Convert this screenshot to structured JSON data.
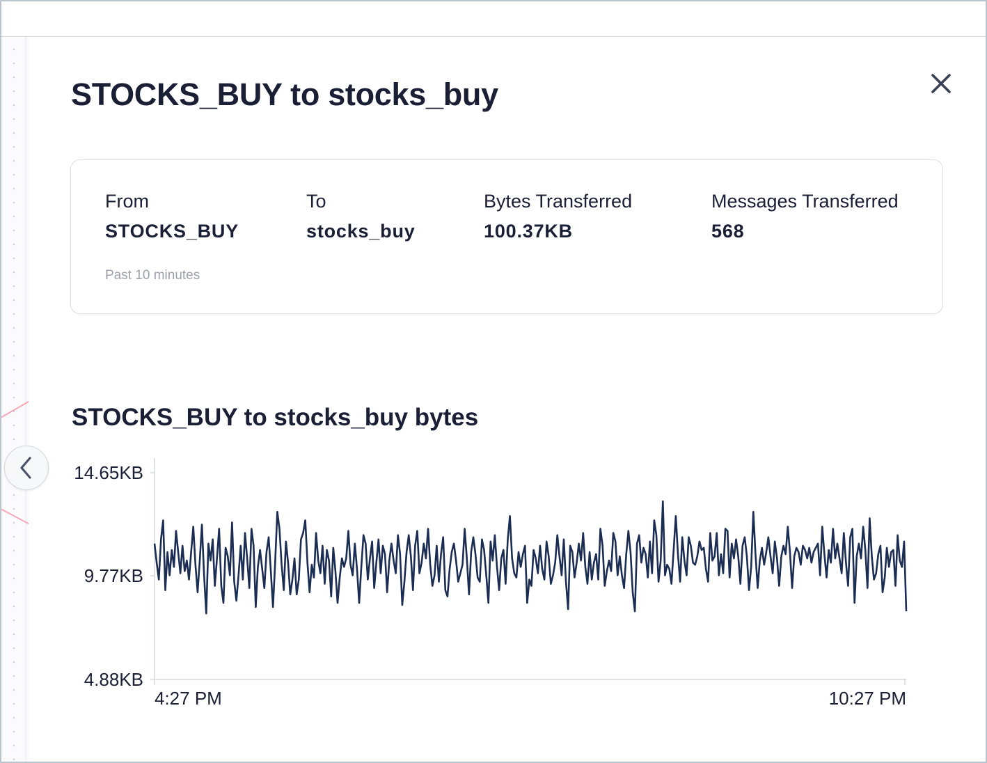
{
  "panel": {
    "title": "STOCKS_BUY to stocks_buy",
    "close_icon": "close-icon"
  },
  "summary": {
    "stats": [
      {
        "label": "From",
        "value": "STOCKS_BUY"
      },
      {
        "label": "To",
        "value": "stocks_buy"
      },
      {
        "label": "Bytes Transferred",
        "value": "100.37KB"
      },
      {
        "label": "Messages Transferred",
        "value": "568"
      }
    ],
    "period": "Past 10 minutes"
  },
  "chart_data": {
    "type": "line",
    "title": "STOCKS_BUY to stocks_buy bytes",
    "xlabel": "",
    "ylabel": "",
    "x_tick_labels": [
      "4:27 PM",
      "10:27 PM"
    ],
    "y_tick_labels": [
      "14.65KB",
      "9.77KB",
      "4.88KB"
    ],
    "ylim": [
      4.88,
      14.65
    ],
    "y_unit": "KB",
    "line_color": "#1b2d52",
    "series": [
      {
        "values": [
          11.3,
          10.4,
          9.6,
          11.5,
          12.4,
          9.1,
          10.9,
          9.8,
          11.0,
          10.2,
          11.9,
          10.9,
          9.9,
          11.2,
          10.0,
          10.5,
          9.6,
          10.9,
          12.1,
          10.3,
          9.0,
          10.5,
          12.2,
          9.8,
          8.0,
          11.3,
          10.5,
          11.5,
          9.3,
          10.6,
          12.0,
          9.3,
          8.5,
          11.1,
          10.7,
          9.8,
          12.3,
          9.5,
          8.6,
          9.8,
          11.2,
          9.6,
          11.8,
          10.6,
          9.2,
          12.0,
          11.2,
          8.3,
          10.2,
          11.0,
          10.1,
          9.2,
          10.9,
          11.6,
          10.0,
          8.3,
          10.4,
          12.8,
          12.0,
          10.3,
          9.1,
          11.4,
          10.4,
          8.9,
          9.6,
          10.6,
          8.9,
          9.6,
          11.5,
          11.8,
          12.4,
          10.4,
          9.0,
          10.3,
          9.7,
          11.8,
          10.5,
          9.9,
          11.2,
          9.4,
          11.0,
          10.5,
          8.8,
          11.1,
          10.0,
          8.5,
          9.7,
          10.6,
          10.2,
          10.6,
          11.9,
          10.3,
          9.8,
          11.3,
          10.1,
          8.5,
          10.2,
          11.7,
          11.3,
          9.6,
          10.6,
          11.4,
          9.2,
          10.4,
          11.5,
          9.9,
          11.2,
          10.8,
          9.0,
          10.5,
          11.3,
          10.5,
          9.9,
          11.7,
          10.8,
          8.4,
          9.5,
          10.9,
          11.7,
          10.7,
          9.1,
          11.2,
          11.9,
          9.9,
          10.4,
          11.3,
          10.6,
          12.0,
          10.3,
          9.3,
          9.8,
          11.2,
          9.5,
          10.8,
          11.6,
          9.1,
          8.8,
          10.1,
          10.9,
          11.3,
          10.5,
          9.5,
          9.9,
          10.3,
          12.0,
          10.6,
          8.9,
          10.9,
          11.6,
          10.8,
          9.7,
          9.5,
          11.5,
          11.0,
          9.8,
          8.5,
          11.4,
          10.5,
          11.7,
          10.2,
          9.1,
          10.6,
          11.0,
          9.4,
          11.5,
          12.6,
          10.6,
          9.9,
          9.7,
          10.9,
          10.2,
          10.8,
          11.2,
          8.5,
          9.6,
          9.3,
          11.0,
          10.6,
          9.9,
          11.2,
          10.1,
          9.6,
          11.4,
          10.7,
          9.4,
          9.8,
          10.4,
          11.7,
          10.7,
          9.8,
          11.5,
          9.5,
          8.2,
          11.2,
          10.9,
          9.7,
          10.4,
          11.3,
          10.5,
          11.8,
          10.2,
          9.4,
          10.9,
          9.6,
          10.4,
          10.8,
          9.6,
          12.0,
          11.2,
          9.3,
          10.0,
          10.5,
          10.0,
          11.8,
          11.4,
          9.8,
          10.7,
          9.8,
          9.2,
          10.8,
          11.9,
          10.9,
          9.0,
          8.1,
          11.3,
          11.7,
          10.4,
          11.1,
          10.8,
          9.7,
          11.4,
          9.9,
          12.4,
          11.7,
          9.5,
          10.5,
          13.3,
          9.8,
          10.3,
          10.1,
          9.4,
          11.0,
          12.6,
          10.8,
          9.5,
          11.6,
          10.5,
          9.8,
          11.6,
          11.2,
          10.4,
          10.3,
          10.7,
          11.4,
          11.0,
          11.1,
          10.1,
          9.5,
          11.8,
          10.5,
          10.7,
          11.8,
          9.8,
          10.8,
          9.9,
          12.0,
          11.9,
          9.7,
          11.3,
          10.6,
          11.5,
          10.7,
          9.4,
          11.2,
          11.6,
          10.7,
          9.1,
          10.2,
          12.8,
          10.8,
          9.2,
          10.5,
          11.1,
          10.3,
          10.9,
          11.6,
          10.7,
          9.9,
          11.4,
          10.6,
          9.3,
          10.7,
          11.2,
          10.8,
          12.1,
          10.9,
          9.2,
          10.7,
          11.1,
          10.9,
          10.3,
          11.2,
          11.0,
          10.6,
          11.1,
          10.4,
          10.9,
          11.1,
          11.3,
          9.8,
          12.1,
          10.8,
          9.7,
          11.0,
          10.4,
          12.0,
          10.6,
          11.3,
          10.6,
          9.9,
          11.8,
          10.4,
          9.3,
          11.6,
          12.0,
          8.5,
          10.7,
          11.3,
          10.6,
          12.1,
          11.0,
          9.2,
          12.5,
          10.7,
          9.6,
          9.9,
          10.8,
          11.2,
          9.0,
          9.7,
          11.1,
          10.2,
          10.9,
          11.0,
          9.3,
          11.7,
          10.5,
          10.2,
          11.4,
          8.1
        ]
      }
    ]
  }
}
